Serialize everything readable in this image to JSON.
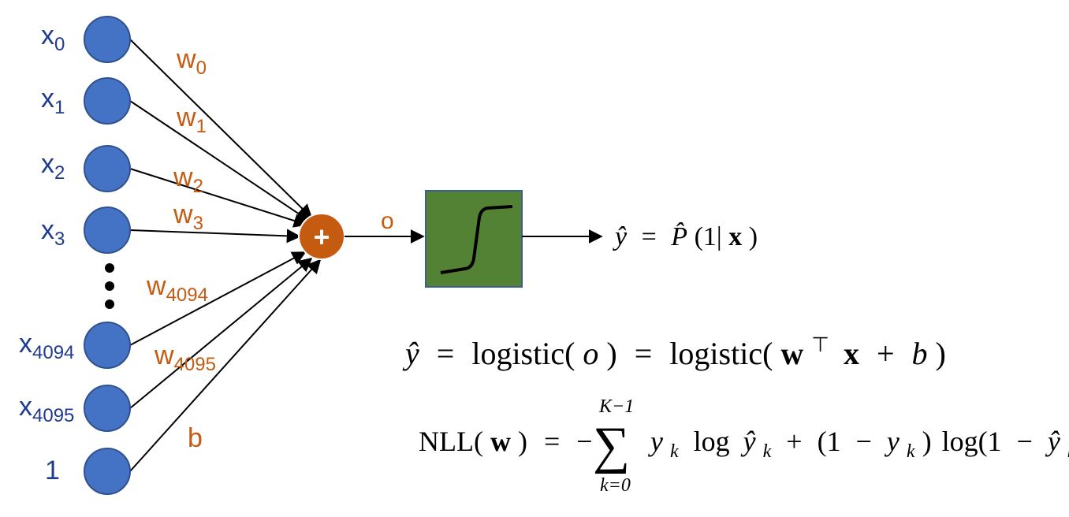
{
  "colors": {
    "input_node": "#4472C4",
    "input_label": "#1F3B8F",
    "weight_label": "#C55A11",
    "sum_node": "#C55A11",
    "activation_box": "#548235",
    "activation_box_border": "#3B5F8F",
    "edge": "#000000"
  },
  "inputs": [
    {
      "base": "x",
      "sub": "0",
      "weight_base": "w",
      "weight_sub": "0"
    },
    {
      "base": "x",
      "sub": "1",
      "weight_base": "w",
      "weight_sub": "1"
    },
    {
      "base": "x",
      "sub": "2",
      "weight_base": "w",
      "weight_sub": "2"
    },
    {
      "base": "x",
      "sub": "3",
      "weight_base": "w",
      "weight_sub": "3"
    },
    {
      "base": "x",
      "sub": "4094",
      "weight_base": "w",
      "weight_sub": "4094"
    },
    {
      "base": "x",
      "sub": "4095",
      "weight_base": "w",
      "weight_sub": "4095"
    },
    {
      "base": "1",
      "sub": "",
      "weight_base": "b",
      "weight_sub": ""
    }
  ],
  "sum_symbol": "+",
  "sum_output_label": "o",
  "activation_icon": "sigmoid-step-icon",
  "output_formula": {
    "yhat": "ŷ",
    "eq": "=",
    "phat": "P̂",
    "args_open": "(1|",
    "x_bold": "x",
    "args_close": ")"
  },
  "logistic_formula": {
    "lhs": "ŷ",
    "eq1": "=",
    "f1": "logistic(",
    "o": "o",
    "close1": ")",
    "eq2": "=",
    "f2": "logistic(",
    "w_bold": "w",
    "transpose": "⊤",
    "x_bold": "x",
    "plus": "+",
    "b": "b",
    "close2": ")"
  },
  "nll_formula": {
    "lhs_open": "NLL(",
    "w_bold": "w",
    "lhs_close": ")",
    "eq": "=",
    "minus": "−",
    "sum_symbol": "∑",
    "sum_upper": "K−1",
    "sum_lower": "k=0",
    "y": "y",
    "k": "k",
    "log": "log",
    "yhat": "ŷ",
    "plus": "+",
    "one_minus_open": "(1",
    "minus2": "−",
    "close": ")",
    "log_open": "log(1",
    "minus3": "−",
    "close2": ")"
  }
}
